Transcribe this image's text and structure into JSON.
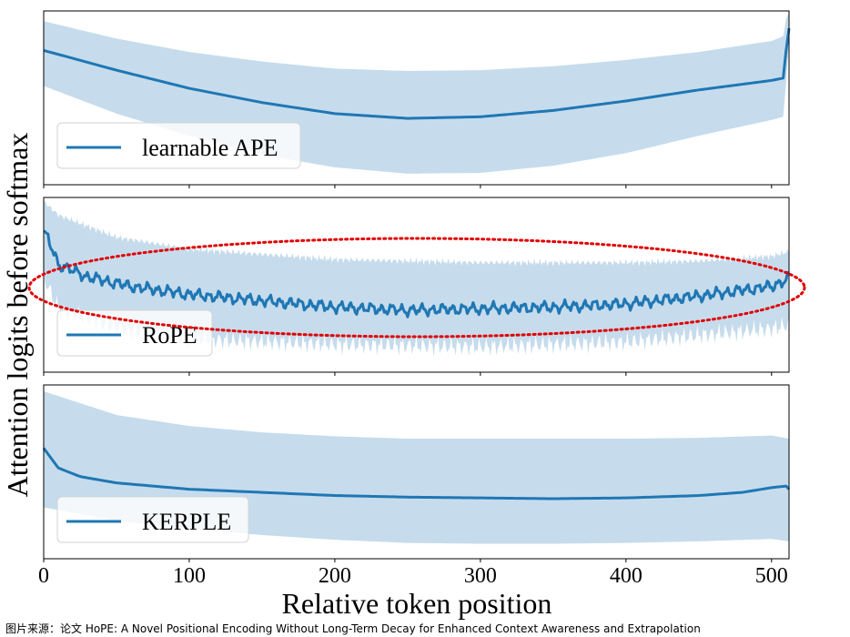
{
  "chart_data": {
    "type": "line",
    "xlabel": "Relative token position",
    "ylabel": "Attention logits before softmax",
    "xlim": [
      0,
      512
    ],
    "x_ticks": [
      0,
      100,
      200,
      300,
      400,
      500
    ],
    "x_tick_labels": [
      "0",
      "100",
      "200",
      "300",
      "400",
      "500"
    ],
    "y_ticks_shown": false,
    "colors": {
      "line": "#1f77b4",
      "band": "#c6dcec",
      "highlight": "#e00000"
    },
    "panels": [
      {
        "legend": "learnable APE",
        "legend_position": "lower-left",
        "ylim": [
          -1.1,
          1.1
        ],
        "mean": {
          "x": [
            0,
            50,
            100,
            150,
            200,
            250,
            300,
            350,
            400,
            450,
            500,
            508,
            510,
            512
          ],
          "y": [
            0.6,
            0.35,
            0.12,
            -0.06,
            -0.2,
            -0.26,
            -0.24,
            -0.16,
            -0.04,
            0.1,
            0.22,
            0.25,
            0.6,
            0.88
          ]
        },
        "upper": {
          "x": [
            0,
            50,
            100,
            150,
            200,
            250,
            300,
            350,
            400,
            450,
            500,
            508,
            510,
            512
          ],
          "y": [
            0.97,
            0.75,
            0.58,
            0.46,
            0.37,
            0.34,
            0.35,
            0.4,
            0.48,
            0.58,
            0.72,
            0.78,
            1.0,
            1.08
          ]
        },
        "lower": {
          "x": [
            0,
            50,
            100,
            150,
            200,
            250,
            300,
            350,
            400,
            450,
            500,
            508,
            510,
            512
          ],
          "y": [
            0.15,
            -0.2,
            -0.48,
            -0.72,
            -0.88,
            -0.96,
            -0.95,
            -0.86,
            -0.7,
            -0.48,
            -0.28,
            -0.24,
            0.2,
            0.7
          ]
        }
      },
      {
        "legend": "RoPE",
        "legend_position": "lower-left",
        "ylim": [
          -1.1,
          1.1
        ],
        "noisy": true,
        "highlight": "dotted-ellipse",
        "mean": {
          "x": [
            0,
            3,
            10,
            30,
            60,
            100,
            150,
            200,
            250,
            300,
            350,
            400,
            450,
            500,
            512
          ],
          "y": [
            0.65,
            0.58,
            0.26,
            0.1,
            -0.02,
            -0.12,
            -0.2,
            -0.28,
            -0.32,
            -0.3,
            -0.28,
            -0.24,
            -0.14,
            -0.02,
            0.08
          ]
        },
        "upper": {
          "x": [
            0,
            10,
            50,
            100,
            200,
            300,
            400,
            450,
            500,
            512
          ],
          "y": [
            1.05,
            0.88,
            0.6,
            0.45,
            0.32,
            0.28,
            0.28,
            0.3,
            0.36,
            0.42
          ]
        },
        "lower": {
          "x": [
            0,
            10,
            50,
            100,
            200,
            300,
            400,
            500,
            512
          ],
          "y": [
            0.1,
            -0.3,
            -0.55,
            -0.68,
            -0.75,
            -0.78,
            -0.72,
            -0.55,
            -0.5
          ]
        }
      },
      {
        "legend": "KERPLE",
        "legend_position": "lower-left",
        "ylim": [
          -1.1,
          1.1
        ],
        "mean": {
          "x": [
            0,
            10,
            25,
            50,
            100,
            150,
            200,
            250,
            300,
            350,
            400,
            450,
            480,
            500,
            510,
            512
          ],
          "y": [
            0.3,
            0.05,
            -0.06,
            -0.14,
            -0.22,
            -0.26,
            -0.3,
            -0.32,
            -0.33,
            -0.34,
            -0.33,
            -0.3,
            -0.26,
            -0.2,
            -0.18,
            -0.22
          ]
        },
        "upper": {
          "x": [
            0,
            50,
            100,
            150,
            200,
            250,
            300,
            350,
            400,
            450,
            500,
            512
          ],
          "y": [
            1.02,
            0.72,
            0.58,
            0.5,
            0.45,
            0.42,
            0.42,
            0.42,
            0.42,
            0.43,
            0.46,
            0.42
          ]
        },
        "lower": {
          "x": [
            0,
            50,
            100,
            150,
            200,
            250,
            300,
            350,
            400,
            450,
            500,
            512
          ],
          "y": [
            -0.45,
            -0.62,
            -0.72,
            -0.8,
            -0.86,
            -0.9,
            -0.91,
            -0.91,
            -0.9,
            -0.88,
            -0.85,
            -0.88
          ]
        }
      }
    ]
  },
  "caption": "图片来源：论文 HoPE: A Novel Positional Encoding Without Long-Term Decay for Enhanced Context Awareness and Extrapolation"
}
